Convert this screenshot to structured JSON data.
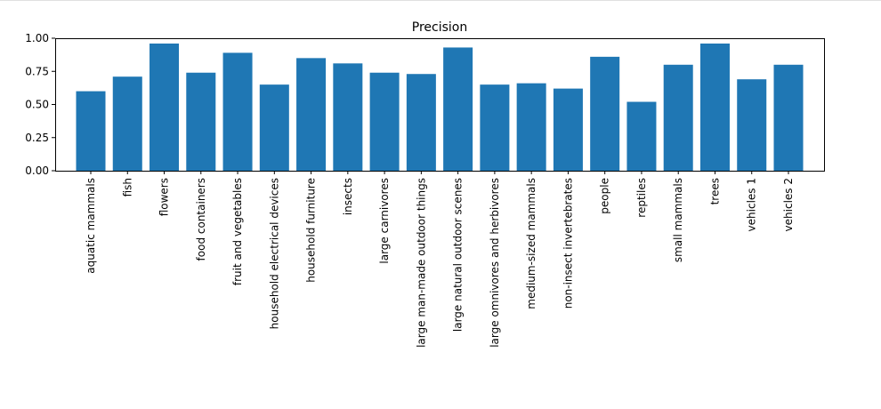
{
  "chart_data": {
    "type": "bar",
    "title": "Precision",
    "xlabel": "",
    "ylabel": "",
    "ylim": [
      0,
      1.0
    ],
    "yticks": [
      "0.00",
      "0.25",
      "0.50",
      "0.75",
      "1.00"
    ],
    "categories": [
      "aquatic mammals",
      "fish",
      "flowers",
      "food containers",
      "fruit and vegetables",
      "household electrical devices",
      "household furniture",
      "insects",
      "large carnivores",
      "large man-made outdoor things",
      "large natural outdoor scenes",
      "large omnivores and herbivores",
      "medium-sized mammals",
      "non-insect invertebrates",
      "people",
      "reptiles",
      "small mammals",
      "trees",
      "vehicles 1",
      "vehicles 2"
    ],
    "values": [
      0.6,
      0.71,
      0.96,
      0.74,
      0.89,
      0.65,
      0.85,
      0.81,
      0.74,
      0.73,
      0.93,
      0.65,
      0.66,
      0.62,
      0.86,
      0.52,
      0.8,
      0.96,
      0.69,
      0.8
    ],
    "bar_color": "#1f77b4",
    "grid": false,
    "legend": false
  }
}
